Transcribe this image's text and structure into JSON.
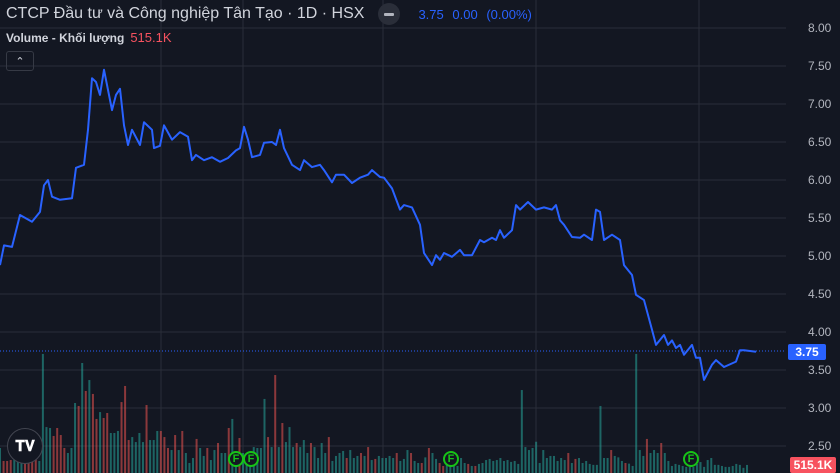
{
  "header": {
    "title": "CTCP Đầu tư và Công nghiệp Tân Tạo · 1D · HSX",
    "last_price": "3.75",
    "change": "0.00",
    "change_pct": "(0.00%)",
    "volume_label": "Volume - Khối lượng",
    "volume_value": "515.1K",
    "collapse_icon": "chevron-up-icon"
  },
  "price_tag": "3.75",
  "volume_tag": "515.1K",
  "logo_text": "TV",
  "markers": [
    {
      "label": "F"
    },
    {
      "label": "F"
    },
    {
      "label": "F"
    },
    {
      "label": "F"
    }
  ],
  "colors": {
    "price_line": "#2962ff",
    "up_volume": "#26a69a",
    "down_volume": "#ef5350",
    "background": "#131722",
    "grid": "#2a2e39",
    "marker": "#17c417"
  },
  "chart_data": {
    "type": "line",
    "title": "",
    "ylim": [
      2.5,
      8.0
    ],
    "y_ticks": [
      "8.00",
      "7.50",
      "7.00",
      "6.50",
      "6.00",
      "5.50",
      "5.00",
      "4.50",
      "4.00",
      "3.50",
      "3.00",
      "2.50"
    ],
    "grid": true,
    "last_price": 3.75,
    "price_series": [
      [
        0,
        4.88
      ],
      [
        1,
        5.14
      ],
      [
        3,
        5.12
      ],
      [
        5,
        5.54
      ],
      [
        8,
        5.45
      ],
      [
        10,
        5.58
      ],
      [
        11,
        5.93
      ],
      [
        12,
        6.0
      ],
      [
        13,
        5.78
      ],
      [
        15,
        5.74
      ],
      [
        18,
        5.76
      ],
      [
        19,
        6.16
      ],
      [
        21,
        6.2
      ],
      [
        22,
        6.66
      ],
      [
        23,
        7.34
      ],
      [
        24,
        7.29
      ],
      [
        25,
        7.12
      ],
      [
        26,
        7.45
      ],
      [
        28,
        6.92
      ],
      [
        29,
        7.12
      ],
      [
        30,
        7.2
      ],
      [
        31,
        6.72
      ],
      [
        32,
        6.46
      ],
      [
        33,
        6.66
      ],
      [
        35,
        6.46
      ],
      [
        36,
        6.76
      ],
      [
        38,
        6.66
      ],
      [
        38.5,
        6.42
      ],
      [
        40,
        6.45
      ],
      [
        41,
        6.72
      ],
      [
        43,
        6.53
      ],
      [
        45,
        6.63
      ],
      [
        47,
        6.57
      ],
      [
        48,
        6.26
      ],
      [
        49,
        6.33
      ],
      [
        51,
        6.26
      ],
      [
        53,
        6.3
      ],
      [
        55,
        6.24
      ],
      [
        57,
        6.29
      ],
      [
        59,
        6.39
      ],
      [
        60,
        6.42
      ],
      [
        61,
        6.7
      ],
      [
        62,
        6.53
      ],
      [
        63,
        6.3
      ],
      [
        65,
        6.33
      ],
      [
        66,
        6.49
      ],
      [
        68,
        6.5
      ],
      [
        69,
        6.46
      ],
      [
        70,
        6.66
      ],
      [
        71,
        6.42
      ],
      [
        73,
        6.2
      ],
      [
        75,
        6.13
      ],
      [
        76,
        6.26
      ],
      [
        78,
        6.17
      ],
      [
        80,
        6.2
      ],
      [
        81,
        6.13
      ],
      [
        83,
        5.97
      ],
      [
        84,
        6.07
      ],
      [
        86,
        6.07
      ],
      [
        88,
        5.96
      ],
      [
        90,
        6.03
      ],
      [
        92,
        6.07
      ],
      [
        93,
        6.13
      ],
      [
        95,
        6.04
      ],
      [
        96,
        6.03
      ],
      [
        98,
        5.89
      ],
      [
        100,
        5.61
      ],
      [
        101,
        5.67
      ],
      [
        103,
        5.64
      ],
      [
        105,
        5.41
      ],
      [
        106,
        5.04
      ],
      [
        108,
        4.88
      ],
      [
        109,
        5.01
      ],
      [
        110,
        4.95
      ],
      [
        111,
        5.04
      ],
      [
        113,
        4.99
      ],
      [
        115,
        5.08
      ],
      [
        116,
        5.01
      ],
      [
        118,
        5.01
      ],
      [
        120,
        5.21
      ],
      [
        121,
        5.18
      ],
      [
        123,
        5.24
      ],
      [
        124,
        5.21
      ],
      [
        125,
        5.34
      ],
      [
        126,
        5.24
      ],
      [
        128,
        5.34
      ],
      [
        129,
        5.67
      ],
      [
        130,
        5.61
      ],
      [
        132,
        5.71
      ],
      [
        134,
        5.61
      ],
      [
        136,
        5.64
      ],
      [
        138,
        5.61
      ],
      [
        139,
        5.67
      ],
      [
        140,
        5.47
      ],
      [
        141,
        5.41
      ],
      [
        143,
        5.25
      ],
      [
        145,
        5.24
      ],
      [
        146,
        5.28
      ],
      [
        148,
        5.21
      ],
      [
        149,
        5.61
      ],
      [
        150,
        5.58
      ],
      [
        151,
        5.21
      ],
      [
        153,
        5.28
      ],
      [
        155,
        5.21
      ],
      [
        156,
        4.88
      ],
      [
        158,
        4.75
      ],
      [
        159,
        4.49
      ],
      [
        161,
        4.42
      ],
      [
        163,
        4.03
      ],
      [
        164,
        3.83
      ],
      [
        166,
        3.96
      ],
      [
        167,
        3.83
      ],
      [
        168,
        3.89
      ],
      [
        169,
        3.79
      ],
      [
        170,
        3.83
      ],
      [
        171,
        3.7
      ],
      [
        173,
        3.83
      ],
      [
        174,
        3.66
      ],
      [
        175,
        3.66
      ],
      [
        176,
        3.37
      ],
      [
        178,
        3.57
      ],
      [
        179,
        3.63
      ],
      [
        181,
        3.54
      ],
      [
        184,
        3.61
      ],
      [
        185,
        3.76
      ],
      [
        186,
        3.76
      ],
      [
        189,
        3.74
      ]
    ],
    "volume_unit": "K",
    "volumes": [
      [
        1600,
        "u"
      ],
      [
        770,
        "d"
      ],
      [
        770,
        "d"
      ],
      [
        830,
        "d"
      ],
      [
        1090,
        "u"
      ],
      [
        1090,
        "u"
      ],
      [
        1280,
        "u"
      ],
      [
        1090,
        "d"
      ],
      [
        1280,
        "d"
      ],
      [
        1470,
        "d"
      ],
      [
        1090,
        "d"
      ],
      [
        770,
        "u"
      ],
      [
        7620,
        "u"
      ],
      [
        2940,
        "u"
      ],
      [
        2880,
        "u"
      ],
      [
        2370,
        "d"
      ],
      [
        2880,
        "d"
      ],
      [
        2430,
        "d"
      ],
      [
        1600,
        "d"
      ],
      [
        1280,
        "u"
      ],
      [
        1600,
        "u"
      ],
      [
        4480,
        "u"
      ],
      [
        4290,
        "d"
      ],
      [
        7040,
        "u"
      ],
      [
        5250,
        "d"
      ],
      [
        5950,
        "u"
      ],
      [
        5060,
        "d"
      ],
      [
        3460,
        "d"
      ],
      [
        3900,
        "u"
      ],
      [
        3520,
        "d"
      ],
      [
        3840,
        "d"
      ],
      [
        2560,
        "u"
      ],
      [
        2560,
        "u"
      ],
      [
        2690,
        "u"
      ],
      [
        4540,
        "d"
      ],
      [
        5570,
        "d"
      ],
      [
        2110,
        "d"
      ],
      [
        2300,
        "u"
      ],
      [
        1980,
        "u"
      ],
      [
        2560,
        "u"
      ],
      [
        1980,
        "u"
      ],
      [
        4350,
        "d"
      ],
      [
        2110,
        "u"
      ],
      [
        2110,
        "u"
      ],
      [
        2690,
        "u"
      ],
      [
        2690,
        "d"
      ],
      [
        2300,
        "d"
      ],
      [
        1600,
        "d"
      ],
      [
        1470,
        "u"
      ],
      [
        2430,
        "d"
      ],
      [
        1470,
        "u"
      ],
      [
        2690,
        "d"
      ],
      [
        1280,
        "u"
      ],
      [
        640,
        "u"
      ],
      [
        960,
        "u"
      ],
      [
        2180,
        "d"
      ],
      [
        1600,
        "u"
      ],
      [
        1090,
        "u"
      ],
      [
        1600,
        "d"
      ],
      [
        830,
        "u"
      ],
      [
        1470,
        "u"
      ],
      [
        1920,
        "d"
      ],
      [
        1280,
        "u"
      ],
      [
        1280,
        "u"
      ],
      [
        2880,
        "d"
      ],
      [
        3460,
        "u"
      ],
      [
        1280,
        "u"
      ],
      [
        2240,
        "d"
      ],
      [
        1280,
        "u"
      ],
      [
        960,
        "u"
      ],
      [
        1280,
        "u"
      ],
      [
        1660,
        "u"
      ],
      [
        1600,
        "u"
      ],
      [
        1600,
        "u"
      ],
      [
        4740,
        "u"
      ],
      [
        2300,
        "d"
      ],
      [
        1660,
        "u"
      ],
      [
        6270,
        "d"
      ],
      [
        1660,
        "u"
      ],
      [
        3200,
        "d"
      ],
      [
        1980,
        "u"
      ],
      [
        2940,
        "u"
      ],
      [
        1660,
        "u"
      ],
      [
        1920,
        "d"
      ],
      [
        1660,
        "u"
      ],
      [
        2110,
        "u"
      ],
      [
        1280,
        "u"
      ],
      [
        1920,
        "d"
      ],
      [
        1660,
        "u"
      ],
      [
        960,
        "u"
      ],
      [
        1920,
        "u"
      ],
      [
        1280,
        "u"
      ],
      [
        2300,
        "d"
      ],
      [
        770,
        "u"
      ],
      [
        1090,
        "u"
      ],
      [
        1280,
        "u"
      ],
      [
        1410,
        "u"
      ],
      [
        960,
        "d"
      ],
      [
        1470,
        "u"
      ],
      [
        960,
        "u"
      ],
      [
        1090,
        "u"
      ],
      [
        1280,
        "d"
      ],
      [
        1090,
        "u"
      ],
      [
        1660,
        "d"
      ],
      [
        830,
        "u"
      ],
      [
        900,
        "d"
      ],
      [
        1090,
        "u"
      ],
      [
        960,
        "u"
      ],
      [
        960,
        "u"
      ],
      [
        1090,
        "u"
      ],
      [
        960,
        "u"
      ],
      [
        1280,
        "d"
      ],
      [
        770,
        "u"
      ],
      [
        900,
        "u"
      ],
      [
        1470,
        "u"
      ],
      [
        1280,
        "d"
      ],
      [
        770,
        "u"
      ],
      [
        640,
        "u"
      ],
      [
        640,
        "d"
      ],
      [
        1000,
        "u"
      ],
      [
        1600,
        "d"
      ],
      [
        1280,
        "u"
      ],
      [
        900,
        "u"
      ],
      [
        640,
        "d"
      ],
      [
        450,
        "d"
      ],
      [
        640,
        "u"
      ],
      [
        580,
        "u"
      ],
      [
        450,
        "u"
      ],
      [
        450,
        "u"
      ],
      [
        960,
        "u"
      ],
      [
        640,
        "u"
      ],
      [
        580,
        "d"
      ],
      [
        450,
        "u"
      ],
      [
        450,
        "d"
      ],
      [
        580,
        "u"
      ],
      [
        640,
        "u"
      ],
      [
        830,
        "u"
      ],
      [
        900,
        "u"
      ],
      [
        770,
        "u"
      ],
      [
        830,
        "u"
      ],
      [
        960,
        "u"
      ],
      [
        770,
        "u"
      ],
      [
        830,
        "u"
      ],
      [
        710,
        "u"
      ],
      [
        770,
        "u"
      ],
      [
        580,
        "u"
      ],
      [
        5310,
        "u"
      ],
      [
        1660,
        "u"
      ],
      [
        1470,
        "u"
      ],
      [
        1600,
        "u"
      ],
      [
        2000,
        "u"
      ],
      [
        640,
        "u"
      ],
      [
        1470,
        "u"
      ],
      [
        960,
        "u"
      ],
      [
        1090,
        "u"
      ],
      [
        1090,
        "u"
      ],
      [
        770,
        "u"
      ],
      [
        960,
        "u"
      ],
      [
        830,
        "u"
      ],
      [
        1280,
        "d"
      ],
      [
        640,
        "u"
      ],
      [
        900,
        "d"
      ],
      [
        960,
        "u"
      ],
      [
        640,
        "u"
      ],
      [
        770,
        "u"
      ],
      [
        580,
        "u"
      ],
      [
        520,
        "u"
      ],
      [
        520,
        "u"
      ],
      [
        4290,
        "u"
      ],
      [
        960,
        "u"
      ],
      [
        960,
        "u"
      ],
      [
        1470,
        "d"
      ],
      [
        1090,
        "u"
      ],
      [
        1000,
        "u"
      ],
      [
        770,
        "u"
      ],
      [
        640,
        "d"
      ],
      [
        600,
        "u"
      ],
      [
        450,
        "u"
      ],
      [
        7620,
        "u"
      ],
      [
        1470,
        "u"
      ],
      [
        1090,
        "u"
      ],
      [
        2180,
        "d"
      ],
      [
        1280,
        "u"
      ],
      [
        1470,
        "u"
      ],
      [
        1280,
        "u"
      ],
      [
        1920,
        "d"
      ],
      [
        1280,
        "u"
      ],
      [
        770,
        "u"
      ],
      [
        450,
        "u"
      ],
      [
        580,
        "u"
      ],
      [
        520,
        "u"
      ],
      [
        450,
        "u"
      ],
      [
        390,
        "u"
      ],
      [
        390,
        "u"
      ],
      [
        390,
        "u"
      ],
      [
        580,
        "u"
      ],
      [
        700,
        "u"
      ],
      [
        390,
        "u"
      ],
      [
        830,
        "u"
      ],
      [
        960,
        "u"
      ],
      [
        520,
        "u"
      ],
      [
        520,
        "u"
      ],
      [
        450,
        "u"
      ],
      [
        390,
        "u"
      ],
      [
        390,
        "u"
      ],
      [
        450,
        "u"
      ],
      [
        580,
        "u"
      ],
      [
        520,
        "u"
      ],
      [
        330,
        "u"
      ],
      [
        515.1,
        "u"
      ]
    ]
  }
}
